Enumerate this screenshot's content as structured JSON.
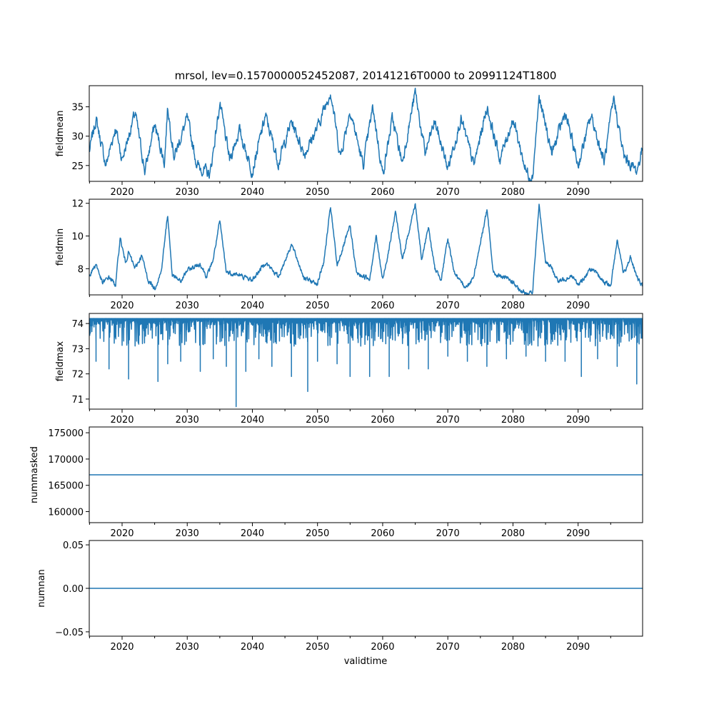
{
  "chart_data": {
    "type": "line",
    "title": "mrsol, lev=0.1570000052452087, 20141216T0000 to 20991124T1800",
    "xlabel": "validtime",
    "x_range": [
      2014.96,
      2099.9
    ],
    "x_ticks": [
      2020,
      2030,
      2040,
      2050,
      2060,
      2070,
      2080,
      2090
    ],
    "x_tick_labels": [
      "2020",
      "2030",
      "2040",
      "2050",
      "2060",
      "2070",
      "2080",
      "2090"
    ],
    "line_color": "#1f77b4",
    "panels": [
      {
        "id": "fieldmean",
        "ylabel": "fieldmean",
        "ylim": [
          22.3,
          38.6
        ],
        "y_ticks": [
          25,
          30,
          35
        ],
        "y_tick_labels": [
          "25",
          "30",
          "35"
        ],
        "series_style": "noisy",
        "points": [
          [
            2015.0,
            27.5
          ],
          [
            2016.0,
            33.0
          ],
          [
            2017.5,
            25.0
          ],
          [
            2019.0,
            31.5
          ],
          [
            2020.0,
            26.0
          ],
          [
            2022.0,
            34.0
          ],
          [
            2023.5,
            24.0
          ],
          [
            2025.0,
            32.0
          ],
          [
            2026.5,
            25.5
          ],
          [
            2027.0,
            35.0
          ],
          [
            2028.0,
            26.5
          ],
          [
            2030.0,
            33.0
          ],
          [
            2031.5,
            25.0
          ],
          [
            2033.5,
            23.5
          ],
          [
            2035.0,
            35.5
          ],
          [
            2036.5,
            26.0
          ],
          [
            2038.0,
            31.0
          ],
          [
            2040.0,
            24.0
          ],
          [
            2042.0,
            33.5
          ],
          [
            2044.0,
            25.5
          ],
          [
            2046.0,
            32.5
          ],
          [
            2048.0,
            27.0
          ],
          [
            2050.0,
            31.5
          ],
          [
            2052.0,
            37.7
          ],
          [
            2053.5,
            26.5
          ],
          [
            2055.0,
            34.5
          ],
          [
            2057.0,
            25.0
          ],
          [
            2058.5,
            35.0
          ],
          [
            2060.0,
            23.5
          ],
          [
            2061.5,
            33.0
          ],
          [
            2063.0,
            25.5
          ],
          [
            2065.0,
            37.5
          ],
          [
            2066.5,
            27.0
          ],
          [
            2068.0,
            32.5
          ],
          [
            2070.0,
            24.5
          ],
          [
            2072.0,
            33.0
          ],
          [
            2074.0,
            25.0
          ],
          [
            2076.0,
            35.0
          ],
          [
            2078.0,
            26.0
          ],
          [
            2080.0,
            33.0
          ],
          [
            2082.0,
            24.0
          ],
          [
            2083.0,
            23.0
          ],
          [
            2084.0,
            36.5
          ],
          [
            2086.0,
            27.0
          ],
          [
            2088.0,
            34.0
          ],
          [
            2090.0,
            25.0
          ],
          [
            2092.0,
            33.5
          ],
          [
            2094.0,
            25.5
          ],
          [
            2095.5,
            36.5
          ],
          [
            2097.0,
            26.5
          ],
          [
            2099.0,
            24.0
          ],
          [
            2099.9,
            28.0
          ]
        ]
      },
      {
        "id": "fieldmin",
        "ylabel": "fieldmin",
        "ylim": [
          6.4,
          12.25
        ],
        "y_ticks": [
          8,
          10,
          12
        ],
        "y_tick_labels": [
          "8",
          "10",
          "12"
        ],
        "series_style": "smooth",
        "points": [
          [
            2015.0,
            7.6
          ],
          [
            2016.0,
            8.3
          ],
          [
            2017.0,
            7.1
          ],
          [
            2018.0,
            7.5
          ],
          [
            2019.0,
            7.0
          ],
          [
            2019.7,
            9.9
          ],
          [
            2020.5,
            8.4
          ],
          [
            2021.0,
            9.0
          ],
          [
            2022.0,
            8.0
          ],
          [
            2023.0,
            8.8
          ],
          [
            2024.0,
            7.3
          ],
          [
            2025.0,
            6.8
          ],
          [
            2026.0,
            7.8
          ],
          [
            2027.0,
            11.3
          ],
          [
            2027.7,
            7.6
          ],
          [
            2029.0,
            7.2
          ],
          [
            2030.0,
            7.9
          ],
          [
            2032.0,
            8.3
          ],
          [
            2033.0,
            7.5
          ],
          [
            2034.0,
            8.6
          ],
          [
            2035.0,
            10.9
          ],
          [
            2036.0,
            7.8
          ],
          [
            2038.0,
            7.6
          ],
          [
            2040.0,
            7.3
          ],
          [
            2042.0,
            8.4
          ],
          [
            2044.0,
            7.5
          ],
          [
            2046.0,
            9.5
          ],
          [
            2048.0,
            7.4
          ],
          [
            2050.0,
            7.1
          ],
          [
            2051.0,
            8.5
          ],
          [
            2052.0,
            11.8
          ],
          [
            2053.0,
            8.2
          ],
          [
            2055.0,
            10.6
          ],
          [
            2056.0,
            7.7
          ],
          [
            2058.0,
            7.4
          ],
          [
            2059.0,
            10.0
          ],
          [
            2060.0,
            7.3
          ],
          [
            2061.0,
            9.3
          ],
          [
            2062.0,
            11.5
          ],
          [
            2063.0,
            8.5
          ],
          [
            2065.0,
            12.0
          ],
          [
            2066.0,
            8.5
          ],
          [
            2067.0,
            10.6
          ],
          [
            2068.0,
            8.0
          ],
          [
            2069.0,
            7.4
          ],
          [
            2070.0,
            9.8
          ],
          [
            2071.0,
            7.8
          ],
          [
            2072.0,
            7.1
          ],
          [
            2073.0,
            6.9
          ],
          [
            2074.0,
            7.6
          ],
          [
            2076.0,
            11.6
          ],
          [
            2077.0,
            7.7
          ],
          [
            2079.0,
            7.4
          ],
          [
            2080.0,
            7.2
          ],
          [
            2081.0,
            6.6
          ],
          [
            2083.0,
            6.5
          ],
          [
            2084.0,
            11.9
          ],
          [
            2085.0,
            8.5
          ],
          [
            2086.0,
            8.0
          ],
          [
            2087.0,
            7.2
          ],
          [
            2089.0,
            7.6
          ],
          [
            2090.0,
            7.0
          ],
          [
            2092.0,
            8.0
          ],
          [
            2094.0,
            7.2
          ],
          [
            2095.0,
            6.9
          ],
          [
            2096.0,
            9.8
          ],
          [
            2097.0,
            7.7
          ],
          [
            2098.0,
            8.7
          ],
          [
            2099.0,
            7.5
          ],
          [
            2099.9,
            6.9
          ]
        ]
      },
      {
        "id": "fieldmax",
        "ylabel": "fieldmax",
        "ylim": [
          70.6,
          74.4
        ],
        "y_ticks": [
          71,
          72,
          73,
          74
        ],
        "y_tick_labels": [
          "71",
          "72",
          "73",
          "74"
        ],
        "series_style": "ceiling-dips",
        "ceiling": 74.2,
        "dips": [
          [
            2016.0,
            72.5
          ],
          [
            2018.0,
            72.2
          ],
          [
            2021.0,
            71.8
          ],
          [
            2025.5,
            71.7
          ],
          [
            2027.0,
            72.4
          ],
          [
            2029.0,
            72.5
          ],
          [
            2032.0,
            72.1
          ],
          [
            2034.0,
            72.6
          ],
          [
            2036.0,
            72.3
          ],
          [
            2037.5,
            70.7
          ],
          [
            2039.0,
            72.1
          ],
          [
            2041.0,
            72.6
          ],
          [
            2043.0,
            72.3
          ],
          [
            2046.0,
            71.9
          ],
          [
            2048.5,
            71.3
          ],
          [
            2050.0,
            72.5
          ],
          [
            2053.0,
            72.4
          ],
          [
            2055.0,
            71.9
          ],
          [
            2058.0,
            71.9
          ],
          [
            2061.0,
            71.9
          ],
          [
            2064.0,
            72.2
          ],
          [
            2067.0,
            72.2
          ],
          [
            2070.0,
            72.7
          ],
          [
            2073.0,
            72.5
          ],
          [
            2076.0,
            72.3
          ],
          [
            2079.0,
            72.6
          ],
          [
            2082.0,
            72.7
          ],
          [
            2085.0,
            72.5
          ],
          [
            2088.0,
            72.5
          ],
          [
            2090.5,
            71.9
          ],
          [
            2093.0,
            72.6
          ],
          [
            2096.0,
            72.3
          ],
          [
            2099.0,
            71.6
          ]
        ]
      },
      {
        "id": "nummasked",
        "ylabel": "nummasked",
        "ylim": [
          157900,
          176100
        ],
        "y_ticks": [
          160000,
          165000,
          170000,
          175000
        ],
        "y_tick_labels": [
          "160000",
          "165000",
          "170000",
          "175000"
        ],
        "series_style": "constant",
        "constant": 167000
      },
      {
        "id": "numnan",
        "ylabel": "numnan",
        "ylim": [
          -0.055,
          0.055
        ],
        "y_ticks": [
          -0.05,
          0.0,
          0.05
        ],
        "y_tick_labels": [
          "−0.05",
          "0.00",
          "0.05"
        ],
        "series_style": "constant",
        "constant": 0.0
      }
    ]
  }
}
